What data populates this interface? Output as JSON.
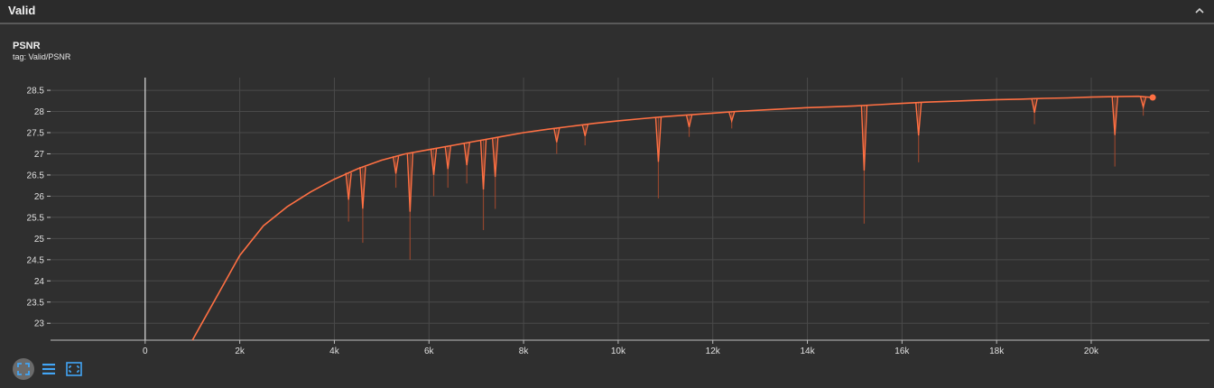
{
  "header": {
    "title": "Valid"
  },
  "card": {
    "title": "PSNR",
    "tag": "tag: Valid/PSNR"
  },
  "icons": {
    "collapse": "chevron-up-icon",
    "tools": [
      "fit-domain-icon",
      "toggle-log-list-icon",
      "expand-fullscreen-icon"
    ]
  },
  "colors": {
    "series": "#ff7043",
    "background": "#2f2f2f",
    "grid": "#4a4a4a",
    "toolAccent": "#42a5f5"
  },
  "chart_data": {
    "type": "line",
    "title": "PSNR",
    "xlabel": "",
    "ylabel": "",
    "xlim": [
      -2000,
      22500
    ],
    "ylim": [
      22.6,
      28.8
    ],
    "x_ticks": [
      0,
      2000,
      4000,
      6000,
      8000,
      10000,
      12000,
      14000,
      16000,
      18000,
      20000
    ],
    "x_tick_labels": [
      "0",
      "2k",
      "4k",
      "6k",
      "8k",
      "10k",
      "12k",
      "14k",
      "16k",
      "18k",
      "20k"
    ],
    "y_ticks": [
      23,
      23.5,
      24,
      24.5,
      25,
      25.5,
      26,
      26.5,
      27,
      27.5,
      28,
      28.5
    ],
    "y_tick_labels": [
      "23",
      "23.5",
      "24",
      "24.5",
      "25",
      "25.5",
      "26",
      "26.5",
      "27",
      "27.5",
      "28",
      "28.5"
    ],
    "grid": true,
    "legend": "none",
    "series": [
      {
        "color": "#ff7043",
        "x": [
          1000,
          1200,
          1500,
          2000,
          2500,
          3000,
          3500,
          4000,
          4500,
          5000,
          5500,
          6000,
          6500,
          7000,
          7500,
          8000,
          8500,
          9000,
          9500,
          10000,
          10500,
          11000,
          11500,
          12000,
          12500,
          13000,
          13500,
          14000,
          14500,
          15000,
          15500,
          16000,
          16500,
          17000,
          17500,
          18000,
          18500,
          19000,
          19500,
          20000,
          20500,
          21000,
          21300
        ],
        "y": [
          22.6,
          23.0,
          23.6,
          24.6,
          25.3,
          25.75,
          26.1,
          26.4,
          26.65,
          26.85,
          27.0,
          27.1,
          27.2,
          27.3,
          27.4,
          27.5,
          27.58,
          27.65,
          27.72,
          27.78,
          27.83,
          27.88,
          27.92,
          27.96,
          28.0,
          28.03,
          28.06,
          28.09,
          28.11,
          28.13,
          28.16,
          28.19,
          28.22,
          28.24,
          28.26,
          28.28,
          28.29,
          28.31,
          28.32,
          28.34,
          28.35,
          28.36,
          28.33
        ]
      }
    ],
    "dips": [
      {
        "x": 4300,
        "y": 25.4
      },
      {
        "x": 4600,
        "y": 24.9
      },
      {
        "x": 5300,
        "y": 26.2
      },
      {
        "x": 5600,
        "y": 24.5
      },
      {
        "x": 6100,
        "y": 26.0
      },
      {
        "x": 6400,
        "y": 26.2
      },
      {
        "x": 6800,
        "y": 26.3
      },
      {
        "x": 7150,
        "y": 25.2
      },
      {
        "x": 7400,
        "y": 25.7
      },
      {
        "x": 8700,
        "y": 27.0
      },
      {
        "x": 9300,
        "y": 27.2
      },
      {
        "x": 10850,
        "y": 25.95
      },
      {
        "x": 11500,
        "y": 27.4
      },
      {
        "x": 12400,
        "y": 27.6
      },
      {
        "x": 15200,
        "y": 25.35
      },
      {
        "x": 16350,
        "y": 26.8
      },
      {
        "x": 18800,
        "y": 27.7
      },
      {
        "x": 20500,
        "y": 26.7
      },
      {
        "x": 21100,
        "y": 27.9
      }
    ]
  }
}
